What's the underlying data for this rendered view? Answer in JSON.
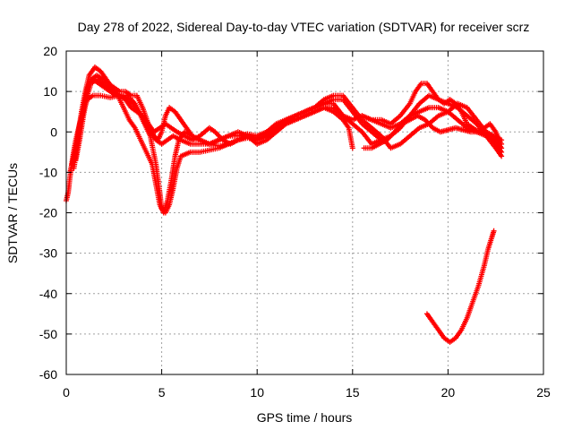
{
  "chart_data": {
    "type": "scatter",
    "title": "Day 278 of 2022, Sidereal Day-to-day VTEC variation (SDTVAR) for receiver scrz",
    "xlabel": "GPS time / hours",
    "ylabel": "SDTVAR / TECUs",
    "xlim": [
      0,
      25
    ],
    "ylim": [
      -60,
      20
    ],
    "xticks": [
      0,
      5,
      10,
      15,
      20,
      25
    ],
    "yticks": [
      -60,
      -50,
      -40,
      -30,
      -20,
      -10,
      0,
      10,
      20
    ],
    "xtick_labels": [
      "0",
      "5",
      "10",
      "15",
      "20",
      "25"
    ],
    "ytick_labels": [
      "-60",
      "-50",
      "-40",
      "-30",
      "-20",
      "-10",
      "0",
      "10",
      "20"
    ],
    "grid": true,
    "marker": "+",
    "series_color": "#ff0000",
    "series": [
      {
        "name": "track-1",
        "points": [
          [
            0,
            -17
          ],
          [
            0.1,
            -15
          ],
          [
            0.2,
            -11
          ],
          [
            0.35,
            -6
          ],
          [
            0.5,
            -2
          ],
          [
            0.7,
            2
          ],
          [
            0.9,
            5
          ],
          [
            1.1,
            8
          ],
          [
            1.4,
            9
          ],
          [
            1.8,
            9
          ],
          [
            2.3,
            8.5
          ],
          [
            2.8,
            9
          ],
          [
            3.2,
            9
          ],
          [
            3.6,
            7
          ],
          [
            4.0,
            3
          ],
          [
            4.4,
            -1
          ],
          [
            4.7,
            -8
          ],
          [
            4.9,
            -15
          ],
          [
            5.0,
            -19
          ],
          [
            5.2,
            -20
          ],
          [
            5.4,
            -18
          ],
          [
            5.6,
            -14
          ],
          [
            5.8,
            -9
          ],
          [
            6.0,
            -6
          ],
          [
            6.5,
            -5
          ],
          [
            7,
            -5
          ],
          [
            7.5,
            -4.5
          ],
          [
            8,
            -4
          ],
          [
            8.5,
            -3
          ],
          [
            9,
            -2
          ],
          [
            9.5,
            -1.5
          ],
          [
            10,
            -2
          ],
          [
            10.5,
            -1
          ],
          [
            11,
            0
          ],
          [
            11.5,
            2
          ],
          [
            12,
            3
          ],
          [
            12.5,
            4
          ],
          [
            13,
            5
          ],
          [
            13.5,
            6
          ],
          [
            14,
            5
          ],
          [
            14.5,
            3
          ],
          [
            14.8,
            1
          ],
          [
            15.0,
            -4
          ]
        ]
      },
      {
        "name": "track-2",
        "points": [
          [
            0.2,
            -10
          ],
          [
            0.4,
            -6
          ],
          [
            0.6,
            -1
          ],
          [
            0.8,
            5
          ],
          [
            1.0,
            10
          ],
          [
            1.2,
            14
          ],
          [
            1.5,
            16
          ],
          [
            1.8,
            15
          ],
          [
            2.1,
            13
          ],
          [
            2.4,
            11
          ],
          [
            2.7,
            9
          ],
          [
            3.0,
            6
          ],
          [
            3.3,
            3
          ],
          [
            3.6,
            1
          ],
          [
            3.9,
            -2
          ],
          [
            4.2,
            -5
          ],
          [
            4.5,
            -8
          ],
          [
            4.7,
            -13
          ],
          [
            4.9,
            -18
          ],
          [
            5.1,
            -20
          ],
          [
            5.3,
            -17
          ],
          [
            5.5,
            -12
          ],
          [
            5.7,
            -6
          ],
          [
            5.9,
            -2
          ],
          [
            6.2,
            0
          ],
          [
            6.6,
            -1
          ],
          [
            7,
            -2
          ],
          [
            7.5,
            -3
          ],
          [
            8,
            -3.5
          ],
          [
            8.5,
            -3
          ],
          [
            9,
            -2
          ],
          [
            9.5,
            -1
          ],
          [
            10,
            -1.5
          ],
          [
            10.5,
            0
          ],
          [
            11,
            1
          ],
          [
            11.5,
            3
          ],
          [
            12,
            4
          ],
          [
            12.5,
            5
          ],
          [
            13,
            6
          ],
          [
            13.5,
            7
          ],
          [
            14,
            7
          ],
          [
            14.5,
            4
          ],
          [
            15,
            2
          ],
          [
            15.5,
            0
          ],
          [
            16,
            -3
          ],
          [
            16.5,
            -2
          ]
        ]
      },
      {
        "name": "track-3",
        "points": [
          [
            0.3,
            -8
          ],
          [
            0.5,
            -4
          ],
          [
            0.7,
            1
          ],
          [
            0.9,
            6
          ],
          [
            1.1,
            11
          ],
          [
            1.3,
            13
          ],
          [
            1.6,
            14
          ],
          [
            1.9,
            13
          ],
          [
            2.2,
            12
          ],
          [
            2.5,
            11
          ],
          [
            2.8,
            10
          ],
          [
            3.1,
            10
          ],
          [
            3.4,
            9
          ],
          [
            3.7,
            9
          ],
          [
            4.0,
            6
          ],
          [
            4.3,
            2
          ],
          [
            4.6,
            -1
          ],
          [
            4.8,
            -2
          ],
          [
            5.0,
            0
          ],
          [
            5.2,
            4
          ],
          [
            5.4,
            6
          ],
          [
            5.7,
            5
          ],
          [
            6.0,
            3
          ],
          [
            6.3,
            1
          ],
          [
            6.6,
            -1
          ],
          [
            7.0,
            -2
          ],
          [
            7.5,
            -3
          ],
          [
            8,
            -2
          ],
          [
            8.5,
            -1
          ],
          [
            9,
            -1
          ],
          [
            9.5,
            -0.5
          ],
          [
            10,
            -1
          ],
          [
            10.5,
            0
          ],
          [
            11,
            2
          ],
          [
            11.5,
            3
          ],
          [
            12,
            4
          ],
          [
            12.5,
            5
          ],
          [
            13,
            6
          ],
          [
            13.5,
            8
          ],
          [
            14,
            9
          ],
          [
            14.5,
            9
          ],
          [
            15,
            6
          ],
          [
            15.5,
            3
          ],
          [
            16,
            1
          ],
          [
            16.5,
            -1
          ],
          [
            17,
            -4
          ],
          [
            17.5,
            -3
          ],
          [
            18,
            -1
          ],
          [
            18.5,
            1
          ],
          [
            19,
            2
          ],
          [
            19.5,
            4
          ],
          [
            20,
            5
          ],
          [
            20.5,
            7
          ],
          [
            21,
            6
          ],
          [
            21.5,
            3
          ],
          [
            22,
            0
          ],
          [
            22.5,
            -3
          ],
          [
            22.8,
            -5
          ]
        ]
      },
      {
        "name": "track-4",
        "points": [
          [
            0.4,
            -9
          ],
          [
            0.6,
            -3
          ],
          [
            0.8,
            3
          ],
          [
            1.0,
            8
          ],
          [
            1.2,
            12
          ],
          [
            1.4,
            13
          ],
          [
            1.7,
            12
          ],
          [
            2.0,
            11
          ],
          [
            2.3,
            10
          ],
          [
            2.6,
            9
          ],
          [
            2.9,
            9
          ],
          [
            3.2,
            8
          ],
          [
            3.5,
            7
          ],
          [
            3.8,
            5
          ],
          [
            4.1,
            3
          ],
          [
            4.4,
            0
          ],
          [
            4.7,
            -2
          ],
          [
            5.0,
            -3
          ],
          [
            5.3,
            -2
          ],
          [
            5.6,
            -1
          ],
          [
            6.0,
            -2
          ],
          [
            6.5,
            -3
          ],
          [
            7,
            -3
          ],
          [
            7.5,
            -3
          ],
          [
            8,
            -2
          ],
          [
            8.5,
            -1
          ],
          [
            9,
            0
          ],
          [
            9.5,
            -1
          ],
          [
            10,
            -3
          ],
          [
            10.5,
            -2
          ],
          [
            11,
            0
          ],
          [
            11.5,
            2
          ],
          [
            12,
            4
          ],
          [
            12.5,
            5
          ],
          [
            13,
            6
          ],
          [
            13.5,
            7
          ],
          [
            14,
            8
          ],
          [
            14.5,
            8
          ],
          [
            15,
            5
          ],
          [
            15.5,
            2
          ],
          [
            16,
            0
          ],
          [
            16.5,
            -2
          ],
          [
            17,
            -1
          ],
          [
            17.5,
            1
          ],
          [
            18,
            4
          ],
          [
            18.5,
            7
          ],
          [
            19,
            9
          ],
          [
            19.5,
            8
          ],
          [
            20,
            7
          ],
          [
            20.5,
            6
          ],
          [
            21,
            4
          ],
          [
            21.5,
            2
          ],
          [
            22,
            -1
          ],
          [
            22.5,
            -4
          ],
          [
            22.8,
            -6
          ]
        ]
      },
      {
        "name": "track-5",
        "points": [
          [
            0.5,
            -7
          ],
          [
            0.7,
            -2
          ],
          [
            0.9,
            4
          ],
          [
            1.1,
            9
          ],
          [
            1.3,
            12
          ],
          [
            1.6,
            13
          ],
          [
            1.9,
            12
          ],
          [
            2.2,
            11
          ],
          [
            2.5,
            10
          ],
          [
            2.8,
            9
          ],
          [
            3.1,
            8
          ],
          [
            3.4,
            6
          ],
          [
            3.7,
            5
          ],
          [
            4.0,
            4
          ],
          [
            4.3,
            2
          ],
          [
            4.6,
            0
          ],
          [
            4.9,
            1
          ],
          [
            5.2,
            2
          ],
          [
            5.5,
            1
          ],
          [
            5.8,
            0
          ],
          [
            6.2,
            -1
          ],
          [
            6.6,
            -2
          ],
          [
            7,
            -1
          ],
          [
            7.5,
            1
          ],
          [
            7.8,
            0
          ],
          [
            8.2,
            -2
          ],
          [
            8.6,
            -3
          ],
          [
            9,
            -2
          ],
          [
            9.5,
            -1
          ],
          [
            10,
            -2
          ],
          [
            10.5,
            -1
          ],
          [
            11,
            1
          ],
          [
            11.5,
            2
          ],
          [
            12,
            3
          ],
          [
            12.5,
            4
          ],
          [
            13,
            5
          ],
          [
            13.5,
            6
          ],
          [
            14,
            6
          ],
          [
            14.5,
            4
          ],
          [
            15,
            3
          ],
          [
            15.5,
            4
          ],
          [
            16,
            3
          ],
          [
            16.5,
            2
          ],
          [
            17,
            1
          ],
          [
            17.5,
            2
          ],
          [
            18,
            4
          ],
          [
            18.5,
            5
          ],
          [
            19,
            6
          ],
          [
            19.5,
            6
          ],
          [
            20,
            5
          ],
          [
            20.5,
            3
          ],
          [
            21,
            1
          ],
          [
            21.5,
            0
          ],
          [
            22,
            -1
          ],
          [
            22.5,
            -2
          ],
          [
            22.8,
            -4
          ]
        ]
      },
      {
        "name": "track-6",
        "points": [
          [
            15.5,
            4
          ],
          [
            16,
            3
          ],
          [
            16.5,
            3
          ],
          [
            17,
            2
          ],
          [
            17.5,
            4
          ],
          [
            18,
            7
          ],
          [
            18.3,
            10
          ],
          [
            18.6,
            12
          ],
          [
            18.9,
            12
          ],
          [
            19.2,
            10
          ],
          [
            19.5,
            8
          ],
          [
            19.8,
            7
          ],
          [
            20.1,
            8
          ],
          [
            20.4,
            7
          ],
          [
            20.7,
            5
          ],
          [
            21,
            2
          ],
          [
            21.3,
            1
          ],
          [
            21.6,
            0
          ],
          [
            21.9,
            1
          ],
          [
            22.2,
            2
          ],
          [
            22.5,
            0
          ],
          [
            22.8,
            -3
          ]
        ]
      },
      {
        "name": "track-7",
        "points": [
          [
            15.6,
            -4
          ],
          [
            16,
            -4
          ],
          [
            16.4,
            -3
          ],
          [
            16.8,
            -2
          ],
          [
            17.2,
            0
          ],
          [
            17.6,
            2
          ],
          [
            18,
            3
          ],
          [
            18.4,
            4
          ],
          [
            18.8,
            3
          ],
          [
            19.2,
            1
          ],
          [
            19.6,
            0
          ],
          [
            20,
            0.5
          ],
          [
            20.4,
            1
          ],
          [
            20.8,
            0.5
          ],
          [
            21.2,
            0
          ],
          [
            21.6,
            0
          ],
          [
            22,
            0
          ],
          [
            22.4,
            -1
          ],
          [
            22.8,
            -2
          ]
        ]
      },
      {
        "name": "track-8",
        "points": [
          [
            18.9,
            -45
          ],
          [
            19.2,
            -47
          ],
          [
            19.5,
            -49
          ],
          [
            19.8,
            -51
          ],
          [
            20.1,
            -52
          ],
          [
            20.4,
            -51
          ],
          [
            20.7,
            -49
          ],
          [
            21.0,
            -46
          ],
          [
            21.3,
            -42
          ],
          [
            21.6,
            -38
          ],
          [
            21.9,
            -33
          ],
          [
            22.1,
            -29
          ],
          [
            22.3,
            -26
          ],
          [
            22.4,
            -24.5
          ]
        ]
      }
    ]
  }
}
